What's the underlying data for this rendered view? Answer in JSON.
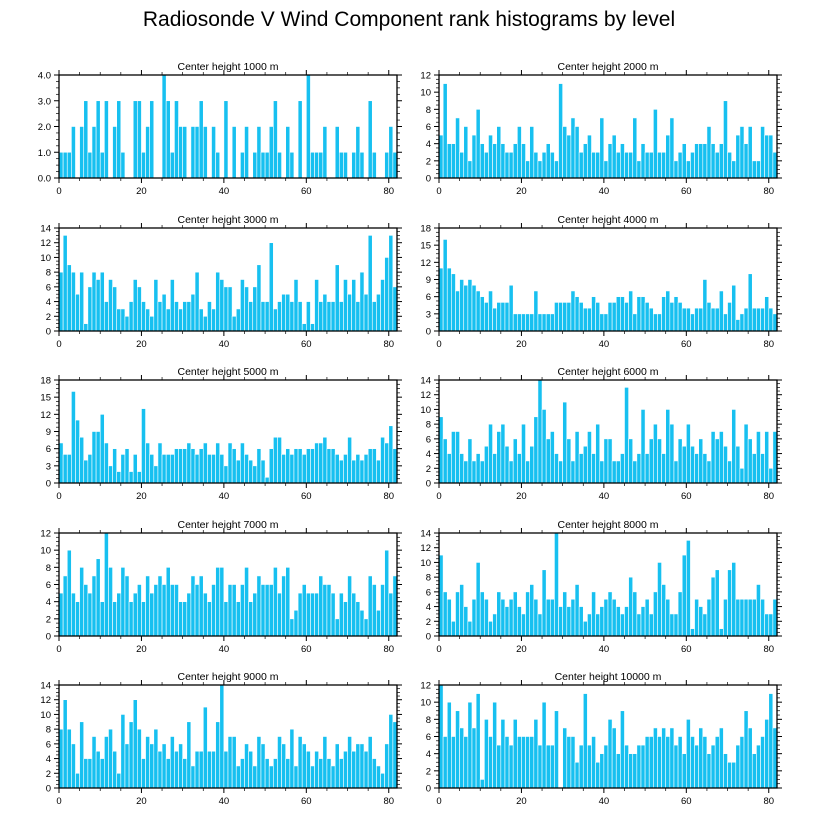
{
  "figure_title": "Radiosonde V Wind Component rank histograms by level",
  "colors": {
    "bar": "#17c0f0",
    "bar_edge": "#ffffff",
    "axis": "#000000"
  },
  "chart_data": [
    {
      "type": "bar",
      "title": "Center height 1000 m",
      "xlim": [
        0,
        82
      ],
      "ylim": [
        0,
        4
      ],
      "xticks": [
        0,
        20,
        40,
        60,
        80
      ],
      "yticks": [
        0,
        1,
        2,
        3,
        4
      ],
      "ytick_labels": [
        "0.0",
        "1.0",
        "2.0",
        "3.0",
        "4.0"
      ],
      "values": [
        1,
        1,
        1,
        2,
        0,
        2,
        3,
        1,
        2,
        3,
        1,
        3,
        0,
        2,
        3,
        1,
        0,
        0,
        3,
        3,
        1,
        2,
        3,
        0,
        0,
        4,
        3,
        1,
        3,
        2,
        2,
        0,
        2,
        2,
        3,
        2,
        0,
        2,
        1,
        0,
        3,
        0,
        2,
        0,
        1,
        2,
        0,
        1,
        2,
        1,
        1,
        2,
        3,
        1,
        0,
        2,
        1,
        0,
        3,
        0,
        4,
        1,
        1,
        1,
        2,
        0,
        0,
        2,
        1,
        1,
        0,
        1,
        2,
        1,
        0,
        3,
        1,
        0,
        0,
        1,
        2,
        1
      ]
    },
    {
      "type": "bar",
      "title": "Center height 2000 m",
      "xlim": [
        0,
        82
      ],
      "ylim": [
        0,
        12
      ],
      "xticks": [
        0,
        20,
        40,
        60,
        80
      ],
      "yticks": [
        0,
        2,
        4,
        6,
        8,
        10,
        12
      ],
      "ytick_labels": [
        "0",
        "2",
        "4",
        "6",
        "8",
        "10",
        "12"
      ],
      "values": [
        5,
        11,
        4,
        4,
        7,
        3,
        6,
        2,
        5,
        8,
        4,
        3,
        5,
        4,
        6,
        4,
        3,
        3,
        4,
        6,
        4,
        2,
        6,
        3,
        2,
        3,
        4,
        3,
        2,
        11,
        6,
        5,
        7,
        6,
        3,
        4,
        5,
        3,
        3,
        7,
        2,
        4,
        5,
        3,
        4,
        3,
        3,
        7,
        2,
        4,
        3,
        3,
        8,
        3,
        3,
        5,
        7,
        2,
        3,
        4,
        2,
        3,
        4,
        4,
        4,
        6,
        4,
        3,
        4,
        9,
        3,
        2,
        5,
        6,
        4,
        6,
        2,
        2,
        6,
        5,
        5,
        3
      ]
    },
    {
      "type": "bar",
      "title": "Center height 3000 m",
      "xlim": [
        0,
        82
      ],
      "ylim": [
        0,
        14
      ],
      "xticks": [
        0,
        20,
        40,
        60,
        80
      ],
      "yticks": [
        0,
        2,
        4,
        6,
        8,
        10,
        12,
        14
      ],
      "ytick_labels": [
        "0",
        "2",
        "4",
        "6",
        "8",
        "10",
        "12",
        "14"
      ],
      "values": [
        8,
        13,
        9,
        8,
        5,
        8,
        1,
        6,
        8,
        7,
        8,
        4,
        7,
        6,
        3,
        3,
        2,
        4,
        7,
        6,
        4,
        3,
        2,
        7,
        4,
        5,
        3,
        7,
        4,
        3,
        4,
        4,
        5,
        8,
        3,
        2,
        4,
        3,
        8,
        7,
        6,
        6,
        2,
        3,
        7,
        6,
        4,
        6,
        9,
        4,
        4,
        12,
        3,
        4,
        5,
        5,
        4,
        7,
        4,
        1,
        4,
        1,
        7,
        4,
        5,
        4,
        4,
        9,
        4,
        7,
        5,
        7,
        4,
        8,
        5,
        13,
        4,
        5,
        7,
        10,
        13,
        6
      ]
    },
    {
      "type": "bar",
      "title": "Center height 4000 m",
      "xlim": [
        0,
        82
      ],
      "ylim": [
        0,
        18
      ],
      "xticks": [
        0,
        20,
        40,
        60,
        80
      ],
      "yticks": [
        0,
        3,
        6,
        9,
        12,
        15,
        18
      ],
      "ytick_labels": [
        "0",
        "3",
        "6",
        "9",
        "12",
        "15",
        "18"
      ],
      "values": [
        11,
        16,
        11,
        10,
        7,
        9,
        8,
        9,
        8,
        7,
        6,
        5,
        7,
        4,
        5,
        5,
        5,
        8,
        3,
        3,
        3,
        3,
        3,
        7,
        3,
        3,
        3,
        3,
        5,
        5,
        5,
        5,
        7,
        6,
        5,
        4,
        4,
        6,
        5,
        3,
        3,
        5,
        5,
        6,
        6,
        5,
        7,
        3,
        6,
        6,
        5,
        4,
        3,
        3,
        6,
        7,
        5,
        6,
        5,
        4,
        4,
        3,
        4,
        4,
        9,
        5,
        4,
        4,
        7,
        3,
        5,
        8,
        2,
        3,
        4,
        10,
        4,
        4,
        4,
        6,
        4,
        3
      ]
    },
    {
      "type": "bar",
      "title": "Center height 5000 m",
      "xlim": [
        0,
        82
      ],
      "ylim": [
        0,
        18
      ],
      "xticks": [
        0,
        20,
        40,
        60,
        80
      ],
      "yticks": [
        0,
        3,
        6,
        9,
        12,
        15,
        18
      ],
      "ytick_labels": [
        "0",
        "3",
        "6",
        "9",
        "12",
        "15",
        "18"
      ],
      "values": [
        7,
        5,
        5,
        16,
        11,
        8,
        4,
        5,
        9,
        9,
        12,
        7,
        3,
        6,
        2,
        5,
        6,
        2,
        5,
        2,
        13,
        7,
        5,
        3,
        7,
        5,
        5,
        5,
        6,
        6,
        6,
        7,
        6,
        5,
        6,
        7,
        5,
        5,
        7,
        5,
        3,
        7,
        6,
        4,
        7,
        5,
        4,
        3,
        6,
        4,
        1,
        6,
        8,
        8,
        5,
        6,
        5,
        6,
        6,
        5,
        6,
        6,
        7,
        7,
        8,
        6,
        6,
        5,
        4,
        5,
        8,
        4,
        5,
        4,
        5,
        6,
        6,
        4,
        8,
        7,
        10,
        6
      ]
    },
    {
      "type": "bar",
      "title": "Center height 6000 m",
      "xlim": [
        0,
        82
      ],
      "ylim": [
        0,
        14
      ],
      "xticks": [
        0,
        20,
        40,
        60,
        80
      ],
      "yticks": [
        0,
        2,
        4,
        6,
        8,
        10,
        12,
        14
      ],
      "ytick_labels": [
        "0",
        "2",
        "4",
        "6",
        "8",
        "10",
        "12",
        "14"
      ],
      "values": [
        9,
        6,
        4,
        7,
        7,
        4,
        3,
        6,
        3,
        4,
        3,
        5,
        8,
        4,
        7,
        8,
        5,
        3,
        6,
        4,
        8,
        3,
        5,
        9,
        14,
        10,
        6,
        7,
        4,
        3,
        11,
        6,
        3,
        7,
        4,
        5,
        7,
        4,
        8,
        3,
        6,
        6,
        3,
        3,
        4,
        13,
        6,
        3,
        4,
        10,
        4,
        6,
        8,
        6,
        4,
        10,
        8,
        3,
        6,
        5,
        8,
        5,
        4,
        6,
        4,
        3,
        7,
        6,
        7,
        5,
        3,
        10,
        5,
        2,
        8,
        6,
        4,
        7,
        4,
        7,
        2,
        7
      ]
    },
    {
      "type": "bar",
      "title": "Center height 7000 m",
      "xlim": [
        0,
        82
      ],
      "ylim": [
        0,
        12
      ],
      "xticks": [
        0,
        20,
        40,
        60,
        80
      ],
      "yticks": [
        0,
        2,
        4,
        6,
        8,
        10,
        12
      ],
      "ytick_labels": [
        "0",
        "2",
        "4",
        "6",
        "8",
        "10",
        "12"
      ],
      "values": [
        5,
        7,
        10,
        5,
        4,
        8,
        6,
        5,
        7,
        9,
        4,
        12,
        8,
        4,
        5,
        8,
        7,
        4,
        5,
        6,
        4,
        7,
        5,
        6,
        7,
        6,
        8,
        6,
        6,
        4,
        4,
        5,
        7,
        6,
        7,
        5,
        4,
        6,
        8,
        8,
        4,
        6,
        6,
        4,
        6,
        8,
        4,
        5,
        7,
        6,
        6,
        6,
        8,
        5,
        7,
        8,
        2,
        3,
        5,
        6,
        5,
        5,
        5,
        7,
        6,
        6,
        5,
        2,
        5,
        4,
        7,
        5,
        4,
        3,
        2,
        7,
        6,
        3,
        6,
        10,
        5,
        7
      ]
    },
    {
      "type": "bar",
      "title": "Center height 8000 m",
      "xlim": [
        0,
        82
      ],
      "ylim": [
        0,
        14
      ],
      "xticks": [
        0,
        20,
        40,
        60,
        80
      ],
      "yticks": [
        0,
        2,
        4,
        6,
        8,
        10,
        12,
        14
      ],
      "ytick_labels": [
        "0",
        "2",
        "4",
        "6",
        "8",
        "10",
        "12",
        "14"
      ],
      "values": [
        11,
        6,
        5,
        2,
        6,
        7,
        4,
        2,
        5,
        10,
        6,
        5,
        2,
        3,
        6,
        5,
        4,
        5,
        6,
        4,
        3,
        6,
        7,
        5,
        3,
        9,
        5,
        5,
        14,
        4,
        6,
        4,
        5,
        7,
        4,
        2,
        3,
        6,
        3,
        4,
        5,
        6,
        5,
        4,
        3,
        4,
        8,
        6,
        3,
        4,
        5,
        3,
        6,
        10,
        7,
        5,
        3,
        3,
        6,
        11,
        13,
        1,
        5,
        4,
        3,
        5,
        8,
        9,
        1,
        5,
        9,
        10,
        5,
        5,
        5,
        5,
        5,
        7,
        5,
        3,
        3,
        5
      ]
    },
    {
      "type": "bar",
      "title": "Center height 9000 m",
      "xlim": [
        0,
        82
      ],
      "ylim": [
        0,
        14
      ],
      "xticks": [
        0,
        20,
        40,
        60,
        80
      ],
      "yticks": [
        0,
        2,
        4,
        6,
        8,
        10,
        12,
        14
      ],
      "ytick_labels": [
        "0",
        "2",
        "4",
        "6",
        "8",
        "10",
        "12",
        "14"
      ],
      "values": [
        8,
        12,
        8,
        6,
        2,
        9,
        4,
        4,
        7,
        5,
        4,
        7,
        8,
        5,
        2,
        10,
        6,
        9,
        12,
        8,
        4,
        7,
        6,
        8,
        5,
        6,
        4,
        7,
        5,
        6,
        4,
        9,
        3,
        5,
        5,
        11,
        5,
        5,
        9,
        14,
        5,
        7,
        7,
        3,
        4,
        6,
        5,
        3,
        7,
        6,
        4,
        3,
        4,
        7,
        6,
        4,
        8,
        3,
        7,
        6,
        5,
        3,
        5,
        4,
        7,
        4,
        3,
        6,
        4,
        5,
        7,
        5,
        6,
        6,
        5,
        7,
        4,
        3,
        2,
        6,
        10,
        9
      ]
    },
    {
      "type": "bar",
      "title": "Center height 10000 m",
      "xlim": [
        0,
        82
      ],
      "ylim": [
        0,
        12
      ],
      "xticks": [
        0,
        20,
        40,
        60,
        80
      ],
      "yticks": [
        0,
        2,
        4,
        6,
        8,
        10,
        12
      ],
      "ytick_labels": [
        "0",
        "2",
        "4",
        "6",
        "8",
        "10",
        "12"
      ],
      "values": [
        12,
        6,
        10,
        6,
        9,
        7,
        6,
        10,
        7,
        11,
        1,
        8,
        6,
        10,
        5,
        8,
        6,
        5,
        8,
        6,
        6,
        6,
        6,
        8,
        5,
        10,
        5,
        5,
        9,
        0,
        7,
        6,
        6,
        3,
        5,
        11,
        5,
        6,
        3,
        4,
        5,
        8,
        7,
        4,
        9,
        5,
        4,
        4,
        5,
        5,
        6,
        6,
        7,
        6,
        7,
        6,
        7,
        5,
        6,
        4,
        8,
        6,
        5,
        7,
        6,
        4,
        5,
        6,
        7,
        4,
        3,
        3,
        5,
        6,
        9,
        7,
        4,
        5,
        6,
        8,
        11,
        7
      ]
    }
  ]
}
